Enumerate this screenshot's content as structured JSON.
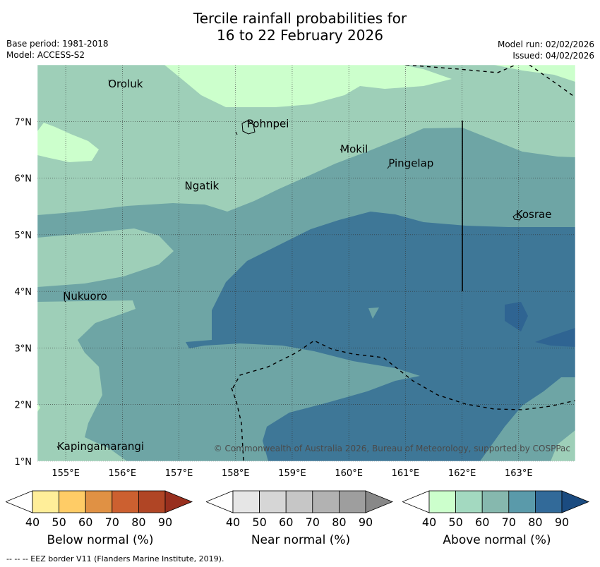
{
  "title_line1": "Tercile rainfall probabilities for",
  "title_line2": "16 to 22 February 2026",
  "base_period": "Base period: 1981-2018",
  "model": "Model: ACCESS-S2",
  "model_run": "Model run: 02/02/2026",
  "issued": "Issued: 04/02/2026",
  "copyright": "© Commonwealth of Australia 2026, Bureau of Meteorology, supported by COSPPac",
  "footer": "--  --  -- EEZ border V11 (Flanders Marine Institute, 2019).",
  "map": {
    "lon_range": [
      154.5,
      164
    ],
    "lat_range": [
      1,
      8
    ],
    "lon_ticks": [
      {
        "value": 155,
        "label": "155°E"
      },
      {
        "value": 156,
        "label": "156°E"
      },
      {
        "value": 157,
        "label": "157°E"
      },
      {
        "value": 158,
        "label": "158°E"
      },
      {
        "value": 159,
        "label": "159°E"
      },
      {
        "value": 160,
        "label": "160°E"
      },
      {
        "value": 161,
        "label": "161°E"
      },
      {
        "value": 162,
        "label": "162°E"
      },
      {
        "value": 163,
        "label": "163°E"
      }
    ],
    "lat_ticks": [
      {
        "value": 1,
        "label": "1°N"
      },
      {
        "value": 2,
        "label": "2°N"
      },
      {
        "value": 3,
        "label": "3°N"
      },
      {
        "value": 4,
        "label": "4°N"
      },
      {
        "value": 5,
        "label": "5°N"
      },
      {
        "value": 6,
        "label": "6°N"
      },
      {
        "value": 7,
        "label": "7°N"
      }
    ],
    "places": [
      {
        "name": "Oroluk",
        "lon": 155.75,
        "lat": 7.6
      },
      {
        "name": "Pohnpei",
        "lon": 158.2,
        "lat": 6.9
      },
      {
        "name": "Mokil",
        "lon": 159.85,
        "lat": 6.45
      },
      {
        "name": "Pingelap",
        "lon": 160.7,
        "lat": 6.2
      },
      {
        "name": "Ngatik",
        "lon": 157.1,
        "lat": 5.8
      },
      {
        "name": "Kosrae",
        "lon": 162.95,
        "lat": 5.3
      },
      {
        "name": "Nukuoro",
        "lon": 154.95,
        "lat": 3.85
      },
      {
        "name": "Kapingamarangi",
        "lon": 154.85,
        "lat": 1.2
      }
    ],
    "colors": {
      "above_50": "#ccffcc",
      "above_60": "#9ecfb8",
      "above_70": "#6ea5a5",
      "above_80": "#3e7797",
      "above_90": "#2f6492"
    }
  },
  "colorbars": [
    {
      "name": "below",
      "label": "Below normal (%)",
      "colors": [
        "#ffee99",
        "#ffcc66",
        "#e09144",
        "#cc6030",
        "#b04525",
        "#982f1e"
      ],
      "ticks": [
        "40",
        "50",
        "60",
        "70",
        "80",
        "90"
      ]
    },
    {
      "name": "near",
      "label": "Near normal (%)",
      "colors": [
        "#e6e6e6",
        "#d6d6d6",
        "#c6c6c6",
        "#b2b2b2",
        "#9e9e9e",
        "#888888"
      ],
      "ticks": [
        "40",
        "50",
        "60",
        "70",
        "80",
        "90"
      ]
    },
    {
      "name": "above",
      "label": "Above normal (%)",
      "colors": [
        "#ccffcc",
        "#a3d9c0",
        "#86b8ae",
        "#5a9aaa",
        "#326a99",
        "#1b4b80"
      ],
      "ticks": [
        "40",
        "50",
        "60",
        "70",
        "80",
        "90"
      ]
    }
  ]
}
